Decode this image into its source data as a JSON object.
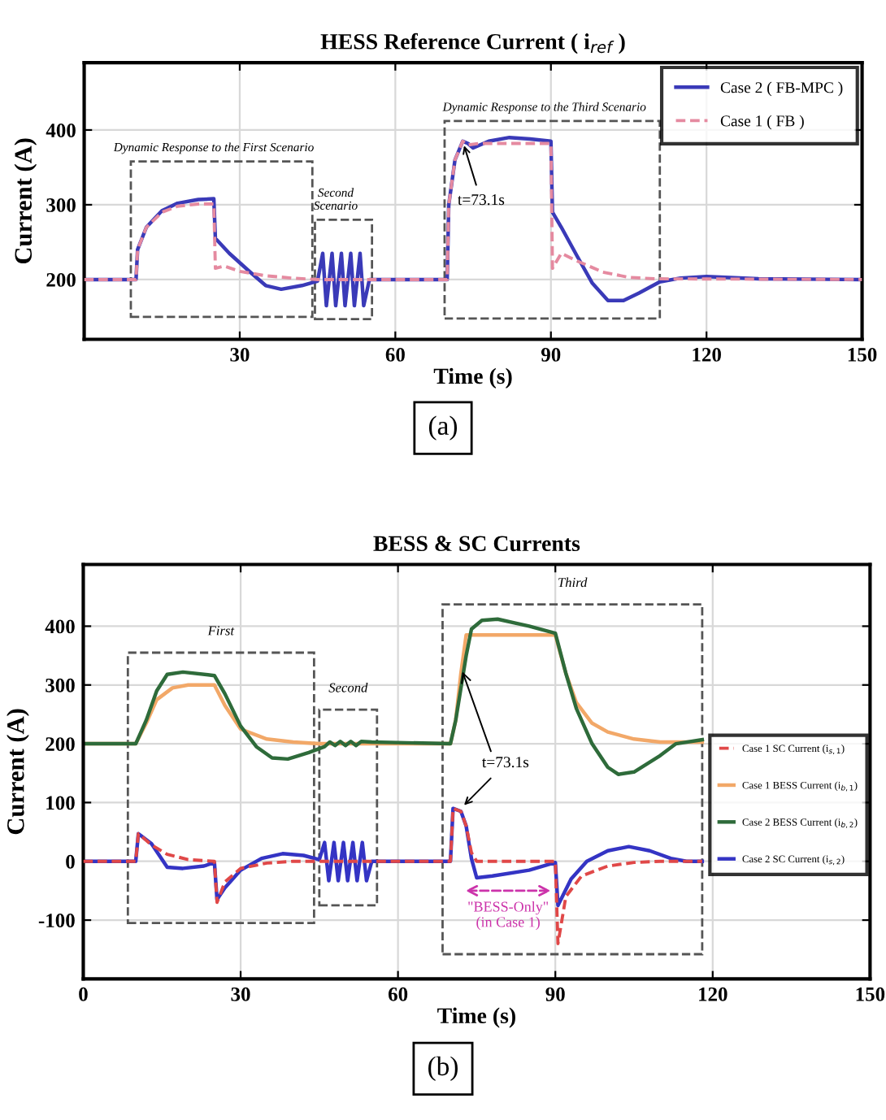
{
  "chart_data": [
    {
      "type": "line",
      "title": "HESS Reference Current ( i$_{ref}$ )",
      "xlabel": "Time (s)",
      "ylabel": "Current (A)",
      "xlim": [
        0,
        150
      ],
      "xticks": [
        {
          "value": 0,
          "label": null
        },
        30,
        60,
        90,
        120,
        150
      ],
      "ylim": [
        120,
        490
      ],
      "yticks": [
        200,
        300,
        400
      ],
      "grid": true,
      "legend": "top right",
      "series": [
        {
          "name": "Case 2 ( FB-MPC )",
          "color": "#3a3ab8",
          "x": [
            0,
            10,
            10.3,
            12,
            15,
            18,
            22,
            25,
            25.3,
            28,
            32,
            35,
            38,
            42,
            45,
            46,
            46.7,
            47.8,
            48.5,
            49.6,
            50.3,
            51.4,
            52.1,
            53.2,
            53.9,
            55,
            70,
            70.3,
            71.5,
            73,
            74,
            75,
            78,
            82,
            86,
            90,
            90.3,
            92,
            95,
            98,
            101,
            104,
            107,
            111,
            115,
            120,
            130,
            150
          ],
          "values": [
            200,
            200,
            240,
            270,
            292,
            302,
            307,
            308,
            255,
            235,
            210,
            192,
            187,
            192,
            198,
            235,
            165,
            235,
            165,
            235,
            165,
            235,
            165,
            235,
            165,
            200,
            200,
            300,
            360,
            385,
            382,
            376,
            385,
            390,
            388,
            385,
            290,
            270,
            232,
            195,
            172,
            172,
            182,
            197,
            202,
            204,
            201,
            200
          ]
        },
        {
          "name": "Case 1 ( FB )",
          "color": "#e58aa0",
          "line_style": "dashed",
          "x": [
            0,
            10,
            10.3,
            12,
            15,
            18,
            22,
            25,
            25.3,
            27,
            30,
            35,
            40,
            45,
            55,
            70,
            70.3,
            71.5,
            73,
            74,
            76,
            80,
            90,
            90.3,
            92,
            95,
            100,
            105,
            110,
            150
          ],
          "values": [
            200,
            200,
            240,
            270,
            290,
            298,
            301,
            301,
            215,
            218,
            211,
            205,
            202,
            200,
            200,
            200,
            300,
            360,
            385,
            380,
            382,
            382,
            382,
            215,
            235,
            225,
            210,
            203,
            201,
            200
          ]
        }
      ],
      "annotations": [
        "Dynamic Response to the First Scenario",
        "Second\nScenario",
        "Dynamic Response to the Third Scenario",
        {
          "text": "t=73.1s",
          "x": 73,
          "y": 385
        },
        "(a)"
      ]
    },
    {
      "type": "line",
      "title": "BESS & SC Currents",
      "xlabel": "Time (s)",
      "ylabel": "Current (A)",
      "xlim": [
        0,
        150
      ],
      "xticks": [
        0,
        30,
        60,
        90,
        120,
        150
      ],
      "ylim": [
        -200,
        505
      ],
      "yticks": [
        -100,
        0,
        100,
        200,
        300,
        400
      ],
      "grid": true,
      "legend": "right",
      "series": [
        {
          "name": "Case 1 SC Current (i$_{s,1}$)",
          "color": "#e04848",
          "line_style": "dashed",
          "x": [
            0,
            10,
            10.5,
            13,
            16,
            20,
            25,
            25.5,
            27,
            30,
            35,
            40,
            55,
            70,
            70.5,
            72,
            73,
            74,
            75,
            90,
            90.5,
            92,
            95,
            100,
            105,
            110,
            118
          ],
          "values": [
            0,
            0,
            47,
            28,
            12,
            3,
            0,
            -70,
            -35,
            -12,
            -3,
            0,
            0,
            0,
            90,
            85,
            60,
            15,
            0,
            0,
            -140,
            -60,
            -25,
            -8,
            -2,
            0,
            0
          ]
        },
        {
          "name": "Case 1 BESS Current (i$_{b,1}$)",
          "color": "#f2a868",
          "x": [
            0,
            10,
            12,
            14,
            17,
            20,
            25,
            27,
            30,
            35,
            40,
            45,
            55,
            70,
            71,
            72,
            73,
            74,
            90,
            92,
            94,
            97,
            100,
            105,
            110,
            118
          ],
          "values": [
            200,
            200,
            235,
            275,
            295,
            300,
            300,
            265,
            225,
            208,
            203,
            200,
            200,
            200,
            240,
            320,
            385,
            385,
            385,
            320,
            270,
            235,
            220,
            208,
            203,
            203
          ]
        },
        {
          "name": "Case 2 BESS Current (i$_{b,2}$)",
          "color": "#2e6b3a",
          "x": [
            0,
            10,
            12,
            14,
            16,
            19,
            25,
            27,
            30,
            33,
            36,
            39,
            43,
            46,
            47,
            48,
            49,
            50,
            51,
            52,
            53,
            55,
            70,
            71,
            73,
            74,
            76,
            79,
            85,
            90,
            92,
            94,
            97,
            100,
            102,
            105,
            110,
            113,
            118
          ],
          "values": [
            200,
            200,
            240,
            290,
            318,
            322,
            316,
            285,
            230,
            195,
            176,
            174,
            185,
            195,
            203,
            197,
            204,
            197,
            204,
            197,
            204,
            203,
            200,
            240,
            350,
            395,
            410,
            412,
            400,
            388,
            320,
            260,
            200,
            160,
            148,
            152,
            180,
            200,
            207
          ]
        },
        {
          "name": "Case 2 SC Current (i$_{s,2}$)",
          "color": "#3434c4",
          "x": [
            0,
            10,
            10.5,
            13,
            16,
            19,
            23,
            25,
            25.5,
            27,
            30,
            34,
            38,
            42,
            45,
            46,
            46.8,
            47.8,
            48.6,
            49.6,
            50.4,
            51.4,
            52.2,
            53.2,
            54,
            55,
            70,
            70.5,
            72,
            73,
            74,
            75,
            78,
            85,
            90,
            90.5,
            93,
            96,
            100,
            104,
            108,
            112,
            115,
            118
          ],
          "values": [
            0,
            0,
            47,
            30,
            -10,
            -12,
            -8,
            -2,
            -65,
            -45,
            -15,
            5,
            13,
            10,
            3,
            32,
            -33,
            32,
            -33,
            32,
            -33,
            32,
            -33,
            32,
            -33,
            0,
            0,
            90,
            85,
            60,
            5,
            -28,
            -25,
            -15,
            -2,
            -75,
            -30,
            0,
            18,
            25,
            18,
            5,
            0,
            0
          ]
        }
      ],
      "annotations": [
        "First",
        "Second",
        "Third",
        {
          "text": "t=73.1s",
          "x": 72,
          "y": 90
        },
        "\"BESS-Only\"\n(in Case 1)",
        "(b)"
      ]
    }
  ]
}
